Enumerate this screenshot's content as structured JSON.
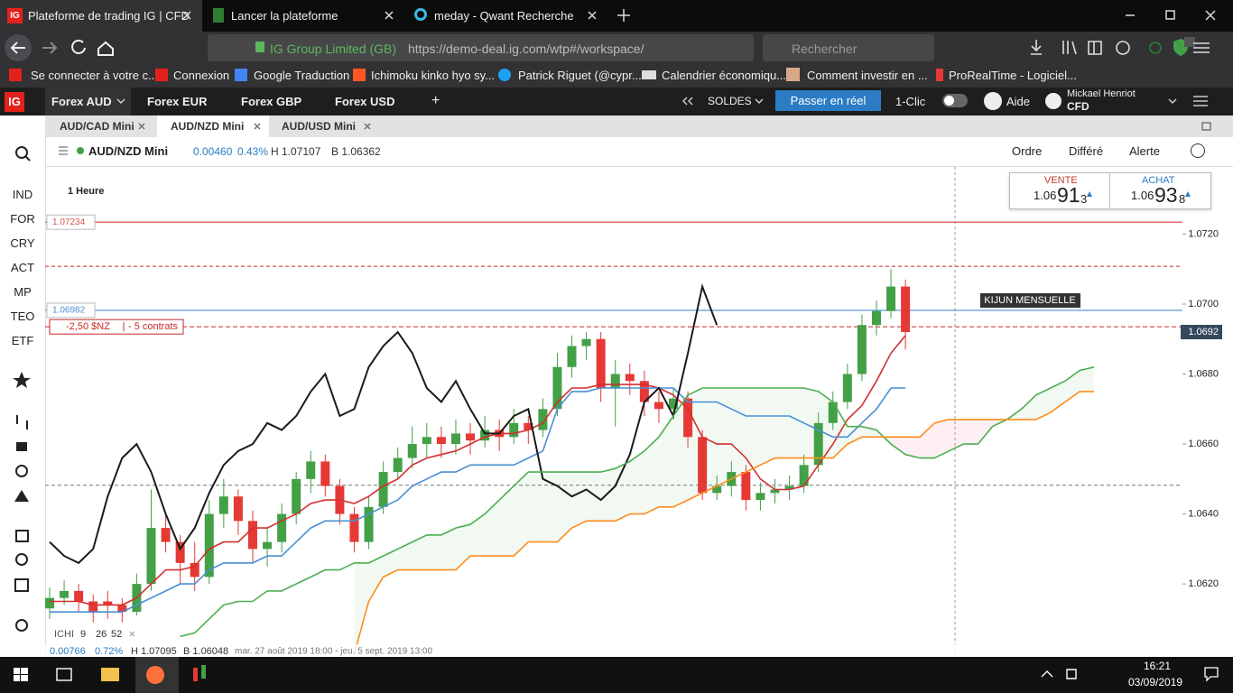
{
  "browser": {
    "tabs": [
      "Plateforme de trading IG | CFD",
      "Lancer la plateforme",
      "meday - Qwant Recherche"
    ],
    "address": {
      "site": "IG Group Limited (GB)",
      "url": "https://demo-deal.ig.com/wtp#/workspace/"
    },
    "search": "Rechercher",
    "bookmarks": [
      "Se connecter à votre c...",
      "Connexion",
      "Google Traduction",
      "Ichimoku kinko hyo sy...",
      "Patrick Riguet (@cypr...",
      "Calendrier économiqu...",
      "Comment investir en ...",
      "ProRealTime - Logiciel..."
    ]
  },
  "app": {
    "logo": "IG",
    "workspaces": [
      "Forex AUD",
      "Forex EUR",
      "Forex GBP",
      "Forex USD"
    ],
    "add": "+",
    "balance": "SOLDES",
    "live": "Passer en réel",
    "one_click": "1-Clic",
    "help": "Aide",
    "user": {
      "name": "Mickael Henriot",
      "account": "CFD"
    }
  },
  "sidebar": [
    "IND",
    "FOR",
    "CRY",
    "ACT",
    "MP",
    "TEO",
    "ETF"
  ],
  "instrument_tabs": [
    "AUD/CAD Mini",
    "AUD/NZD Mini",
    "AUD/USD Mini"
  ],
  "instrument": {
    "name": "AUD/NZD Mini",
    "change": "0.00460",
    "change_pct": "0.43%",
    "high": "H 1.07107",
    "low": "B 1.06362"
  },
  "actions": [
    "Ordre",
    "Différé",
    "Alerte"
  ],
  "deal": {
    "sell": {
      "label": "VENTE",
      "big": "1.06",
      "main": "91",
      "small": "3"
    },
    "buy": {
      "label": "ACHAT",
      "big": "1.06",
      "main": "93",
      "small": "8"
    }
  },
  "chart_data": {
    "type": "candlestick",
    "timeframe": "1 Heure",
    "up_color": "#43a047",
    "down_color": "#e53935",
    "ohlc": [
      [
        1.0613,
        1.0619,
        1.061,
        1.0616
      ],
      [
        1.0616,
        1.0621,
        1.0614,
        1.0618
      ],
      [
        1.0618,
        1.062,
        1.0612,
        1.0615
      ],
      [
        1.0615,
        1.0617,
        1.0609,
        1.0612
      ],
      [
        1.0615,
        1.0618,
        1.061,
        1.0614
      ],
      [
        1.0614,
        1.0616,
        1.0609,
        1.0612
      ],
      [
        1.0612,
        1.0623,
        1.0611,
        1.062
      ],
      [
        1.062,
        1.0647,
        1.0618,
        1.0636
      ],
      [
        1.0636,
        1.064,
        1.0629,
        1.0632
      ],
      [
        1.0632,
        1.0634,
        1.062,
        1.0626
      ],
      [
        1.0626,
        1.0632,
        1.0618,
        1.0622
      ],
      [
        1.0622,
        1.0644,
        1.062,
        1.064
      ],
      [
        1.064,
        1.065,
        1.0636,
        1.0645
      ],
      [
        1.0645,
        1.0647,
        1.0634,
        1.0638
      ],
      [
        1.0638,
        1.0641,
        1.0626,
        1.063
      ],
      [
        1.063,
        1.0636,
        1.0625,
        1.0632
      ],
      [
        1.0632,
        1.0643,
        1.0629,
        1.064
      ],
      [
        1.064,
        1.0652,
        1.0637,
        1.065
      ],
      [
        1.065,
        1.0658,
        1.0646,
        1.0655
      ],
      [
        1.0655,
        1.0657,
        1.0645,
        1.0648
      ],
      [
        1.0648,
        1.065,
        1.0637,
        1.064
      ],
      [
        1.064,
        1.0642,
        1.0629,
        1.0632
      ],
      [
        1.0632,
        1.0645,
        1.063,
        1.0642
      ],
      [
        1.0642,
        1.0655,
        1.064,
        1.0652
      ],
      [
        1.0652,
        1.0659,
        1.065,
        1.0656
      ],
      [
        1.0656,
        1.0665,
        1.0653,
        1.066
      ],
      [
        1.066,
        1.0666,
        1.0656,
        1.0662
      ],
      [
        1.0662,
        1.0665,
        1.0656,
        1.066
      ],
      [
        1.066,
        1.0667,
        1.0657,
        1.0663
      ],
      [
        1.0663,
        1.0666,
        1.0657,
        1.0661
      ],
      [
        1.0661,
        1.0668,
        1.0659,
        1.0664
      ],
      [
        1.0664,
        1.0667,
        1.0658,
        1.0662
      ],
      [
        1.0662,
        1.067,
        1.066,
        1.0666
      ],
      [
        1.0666,
        1.0668,
        1.066,
        1.0664
      ],
      [
        1.0664,
        1.0673,
        1.0662,
        1.067
      ],
      [
        1.067,
        1.0686,
        1.0668,
        1.0682
      ],
      [
        1.0682,
        1.0691,
        1.0679,
        1.0688
      ],
      [
        1.0688,
        1.0692,
        1.0684,
        1.069
      ],
      [
        1.069,
        1.0692,
        1.0672,
        1.0676
      ],
      [
        1.0676,
        1.0684,
        1.0665,
        1.068
      ],
      [
        1.068,
        1.0683,
        1.0674,
        1.0678
      ],
      [
        1.0678,
        1.0681,
        1.0668,
        1.0672
      ],
      [
        1.0672,
        1.0675,
        1.0666,
        1.067
      ],
      [
        1.067,
        1.0676,
        1.0667,
        1.0673
      ],
      [
        1.0673,
        1.0675,
        1.0659,
        1.0662
      ],
      [
        1.0662,
        1.0664,
        1.0644,
        1.0646
      ],
      [
        1.0646,
        1.0651,
        1.0644,
        1.0648
      ],
      [
        1.0648,
        1.0655,
        1.0645,
        1.0652
      ],
      [
        1.0652,
        1.0654,
        1.0641,
        1.0644
      ],
      [
        1.0644,
        1.0649,
        1.0641,
        1.0646
      ],
      [
        1.0646,
        1.065,
        1.0643,
        1.0647
      ],
      [
        1.0647,
        1.0651,
        1.0644,
        1.0648
      ],
      [
        1.0648,
        1.0657,
        1.0646,
        1.0654
      ],
      [
        1.0654,
        1.0669,
        1.0652,
        1.0666
      ],
      [
        1.0666,
        1.0675,
        1.0664,
        1.0672
      ],
      [
        1.0672,
        1.0683,
        1.067,
        1.068
      ],
      [
        1.068,
        1.0697,
        1.0678,
        1.0694
      ],
      [
        1.0694,
        1.0701,
        1.0691,
        1.0698
      ],
      [
        1.0698,
        1.071,
        1.0696,
        1.0705
      ],
      [
        1.0705,
        1.0707,
        1.0687,
        1.0692
      ]
    ],
    "series": [
      {
        "color": "#d32f2f",
        "values": [
          1.0615,
          1.0615,
          1.0615,
          1.0614,
          1.0614,
          1.0614,
          1.0616,
          1.062,
          1.0624,
          1.0624,
          1.0625,
          1.063,
          1.0632,
          1.0632,
          1.0636,
          1.0636,
          1.0638,
          1.064,
          1.0643,
          1.0644,
          1.0644,
          1.0643,
          1.0645,
          1.0648,
          1.065,
          1.0654,
          1.0656,
          1.0657,
          1.0658,
          1.066,
          1.0662,
          1.0663,
          1.0663,
          1.0664,
          1.0666,
          1.0672,
          1.0676,
          1.0676,
          1.0677,
          1.0677,
          1.0677,
          1.0677,
          1.0676,
          1.0674,
          1.067,
          1.0662,
          1.066,
          1.066,
          1.0656,
          1.065,
          1.0647,
          1.0647,
          1.0648,
          1.0654,
          1.066,
          1.0667,
          1.0671,
          1.0678,
          1.0686,
          1.0691
        ]
      },
      {
        "color": "#4a8fd4",
        "values": [
          1.0612,
          1.0612,
          1.0612,
          1.0612,
          1.0612,
          1.0612,
          1.0614,
          1.0616,
          1.0618,
          1.062,
          1.062,
          1.0624,
          1.0626,
          1.0626,
          1.0626,
          1.0628,
          1.0628,
          1.0632,
          1.0636,
          1.0638,
          1.0638,
          1.0638,
          1.064,
          1.0642,
          1.0644,
          1.0648,
          1.065,
          1.0652,
          1.0652,
          1.0654,
          1.0654,
          1.0654,
          1.0654,
          1.0656,
          1.0658,
          1.067,
          1.0675,
          1.0675,
          1.0676,
          1.0676,
          1.0676,
          1.0676,
          1.0676,
          1.0676,
          1.0672,
          1.0672,
          1.0672,
          1.067,
          1.0668,
          1.0668,
          1.0668,
          1.0668,
          1.0666,
          1.0664,
          1.0662,
          1.0662,
          1.0666,
          1.067,
          1.0676,
          1.0676
        ]
      },
      {
        "color": "#1a1a1a",
        "values": [
          1.0632,
          1.0628,
          1.0626,
          1.063,
          1.0645,
          1.0656,
          1.066,
          1.0652,
          1.064,
          1.063,
          1.0636,
          1.0646,
          1.0654,
          1.0658,
          1.066,
          1.0666,
          1.0664,
          1.0668,
          1.0675,
          1.068,
          1.0668,
          1.067,
          1.0682,
          1.0688,
          1.0692,
          1.0686,
          1.0676,
          1.0672,
          1.0678,
          1.067,
          1.0663,
          1.0663,
          1.0668,
          1.067,
          1.065,
          1.0648,
          1.0645,
          1.0647,
          1.0644,
          1.0648,
          1.0657,
          1.0672,
          1.0676,
          1.0668,
          1.0686,
          1.0705,
          1.0694
        ]
      },
      {
        "color": "#4caf50",
        "values": [
          null,
          null,
          null,
          null,
          null,
          null,
          null,
          null,
          null,
          1.0605,
          1.0606,
          1.061,
          1.0614,
          1.0615,
          1.0615,
          1.0618,
          1.0618,
          1.062,
          1.0622,
          1.0624,
          1.0624,
          1.0626,
          1.0626,
          1.0628,
          1.063,
          1.0632,
          1.0634,
          1.0634,
          1.0636,
          1.0637,
          1.064,
          1.0644,
          1.0648,
          1.0652,
          1.0652,
          1.0652,
          1.0652,
          1.0652,
          1.0652,
          1.0653,
          1.0655,
          1.0658,
          1.0662,
          1.0668,
          1.0674,
          1.0676,
          1.0676,
          1.0676,
          1.0676,
          1.0676,
          1.0676,
          1.0676,
          1.0676,
          1.0675,
          1.0672,
          1.0665,
          1.0665,
          1.0664,
          1.066,
          1.0657,
          1.0656,
          1.0656,
          1.0658,
          1.066,
          1.066,
          1.0665,
          1.0667,
          1.067,
          1.0674,
          1.0676,
          1.0678,
          1.0681,
          1.0682
        ]
      },
      {
        "color": "#ff8c1a",
        "values": [
          null,
          null,
          null,
          null,
          null,
          null,
          null,
          null,
          null,
          null,
          null,
          null,
          null,
          null,
          null,
          null,
          null,
          null,
          null,
          null,
          null,
          1.06,
          1.0615,
          1.0622,
          1.0624,
          1.0624,
          1.0624,
          1.0624,
          1.0624,
          1.0628,
          1.0628,
          1.0628,
          1.0628,
          1.0632,
          1.0632,
          1.0632,
          1.0636,
          1.0638,
          1.0638,
          1.0638,
          1.064,
          1.064,
          1.0642,
          1.0642,
          1.0644,
          1.0646,
          1.0648,
          1.065,
          1.0652,
          1.0654,
          1.0656,
          1.0656,
          1.0656,
          1.0656,
          1.0656,
          1.066,
          1.0662,
          1.0662,
          1.0662,
          1.0662,
          1.0662,
          1.0666,
          1.0667,
          1.0667,
          1.0667,
          1.0667,
          1.0667,
          1.0667,
          1.0667,
          1.0669,
          1.0672,
          1.0675,
          1.0675
        ]
      }
    ],
    "ylim": [
      1.05994,
      1.07392
    ],
    "yticks": [
      {
        "value": 1.062,
        "label": "1.0620"
      },
      {
        "value": 1.064,
        "label": "1.0640"
      },
      {
        "value": 1.066,
        "label": "1.0660"
      },
      {
        "value": 1.068,
        "label": "1.0680"
      },
      {
        "value": 1.07,
        "label": "1.0700"
      },
      {
        "value": 1.072,
        "label": "1.0720"
      }
    ],
    "levels": [
      {
        "value": 1.07234,
        "color": "#d9534f"
      },
      {
        "value": 1.06982,
        "color": "#4a8fd4"
      }
    ],
    "dashed_levels": [
      {
        "value": 1.07108,
        "color": "#c62828"
      },
      {
        "value": 1.06482,
        "color": "#777777"
      }
    ],
    "position": {
      "value": 1.06935,
      "pnl": "-2,50 $NZ",
      "size": "- 5 contrats",
      "color": "#c62828"
    },
    "price_tag": {
      "value": 1.0692,
      "label": "1.0692"
    },
    "annotation": "KIJUN MENSUELLE",
    "indicator": {
      "name": "ICHI",
      "params": [
        9,
        26,
        52
      ]
    },
    "footer": {
      "change": "0.00766",
      "change_pct": "0.72%",
      "high": "H 1.07095",
      "low": "B 1.06048",
      "range": "mar. 27 août 2019 18:00 - jeu. 5 sept. 2019 13:00"
    }
  },
  "taskbar": {
    "time": "16:21",
    "date": "03/09/2019"
  }
}
